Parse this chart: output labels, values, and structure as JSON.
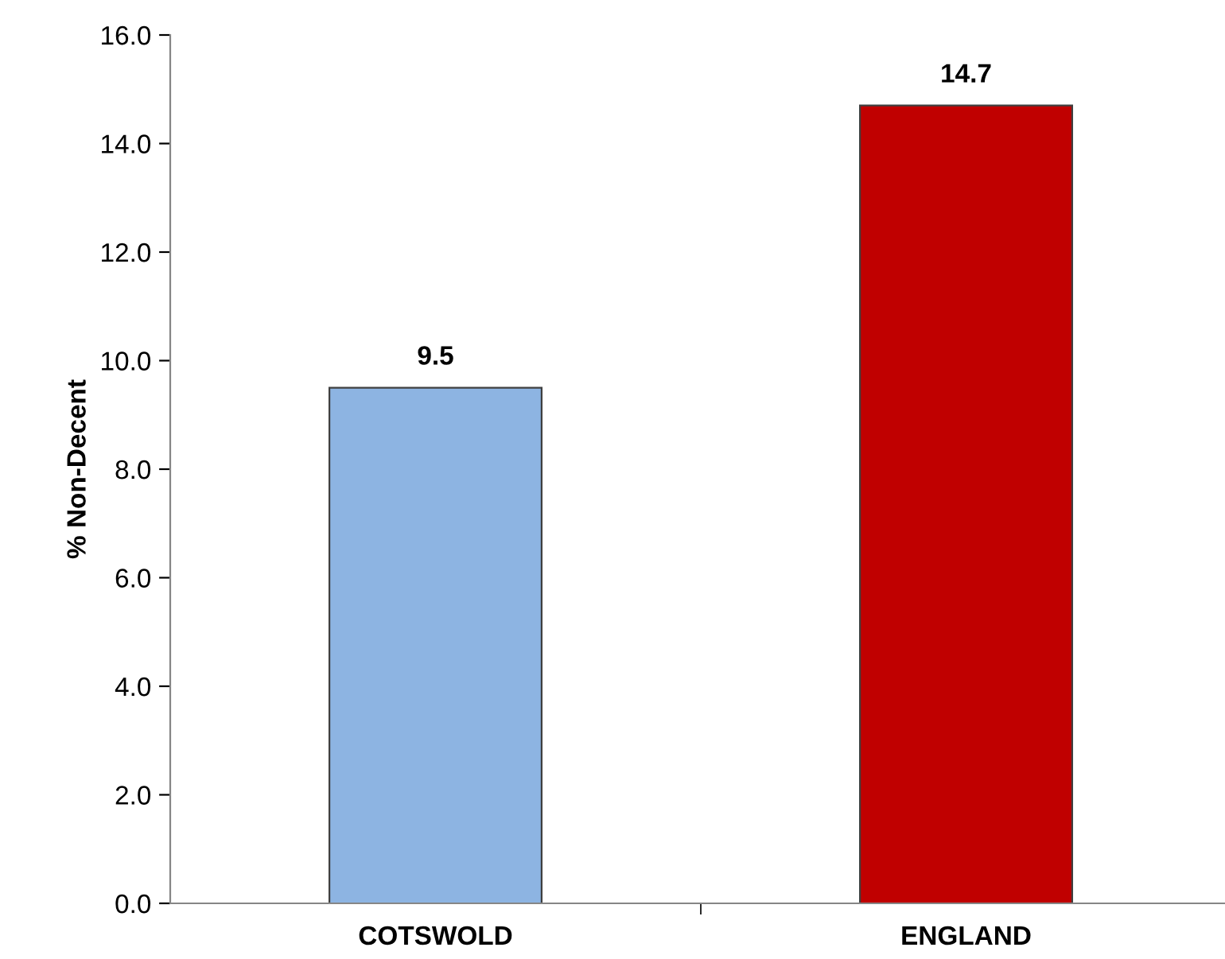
{
  "chart_data": {
    "type": "bar",
    "ylabel": "% Non-Decent",
    "categories": [
      "COTSWOLD",
      "ENGLAND"
    ],
    "values": [
      9.5,
      14.7
    ],
    "colors": [
      "#8db4e2",
      "#c00000"
    ],
    "ylim": [
      0,
      16
    ],
    "yticks": [
      {
        "value": 0,
        "label": "0.0"
      },
      {
        "value": 2,
        "label": "2.0"
      },
      {
        "value": 4,
        "label": "4.0"
      },
      {
        "value": 6,
        "label": "6.0"
      },
      {
        "value": 8,
        "label": "8.0"
      },
      {
        "value": 10,
        "label": "10.0"
      },
      {
        "value": 12,
        "label": "12.0"
      },
      {
        "value": 14,
        "label": "14.0"
      },
      {
        "value": 16,
        "label": "16.0"
      }
    ],
    "data_labels": true,
    "grid": false,
    "legend": false
  }
}
